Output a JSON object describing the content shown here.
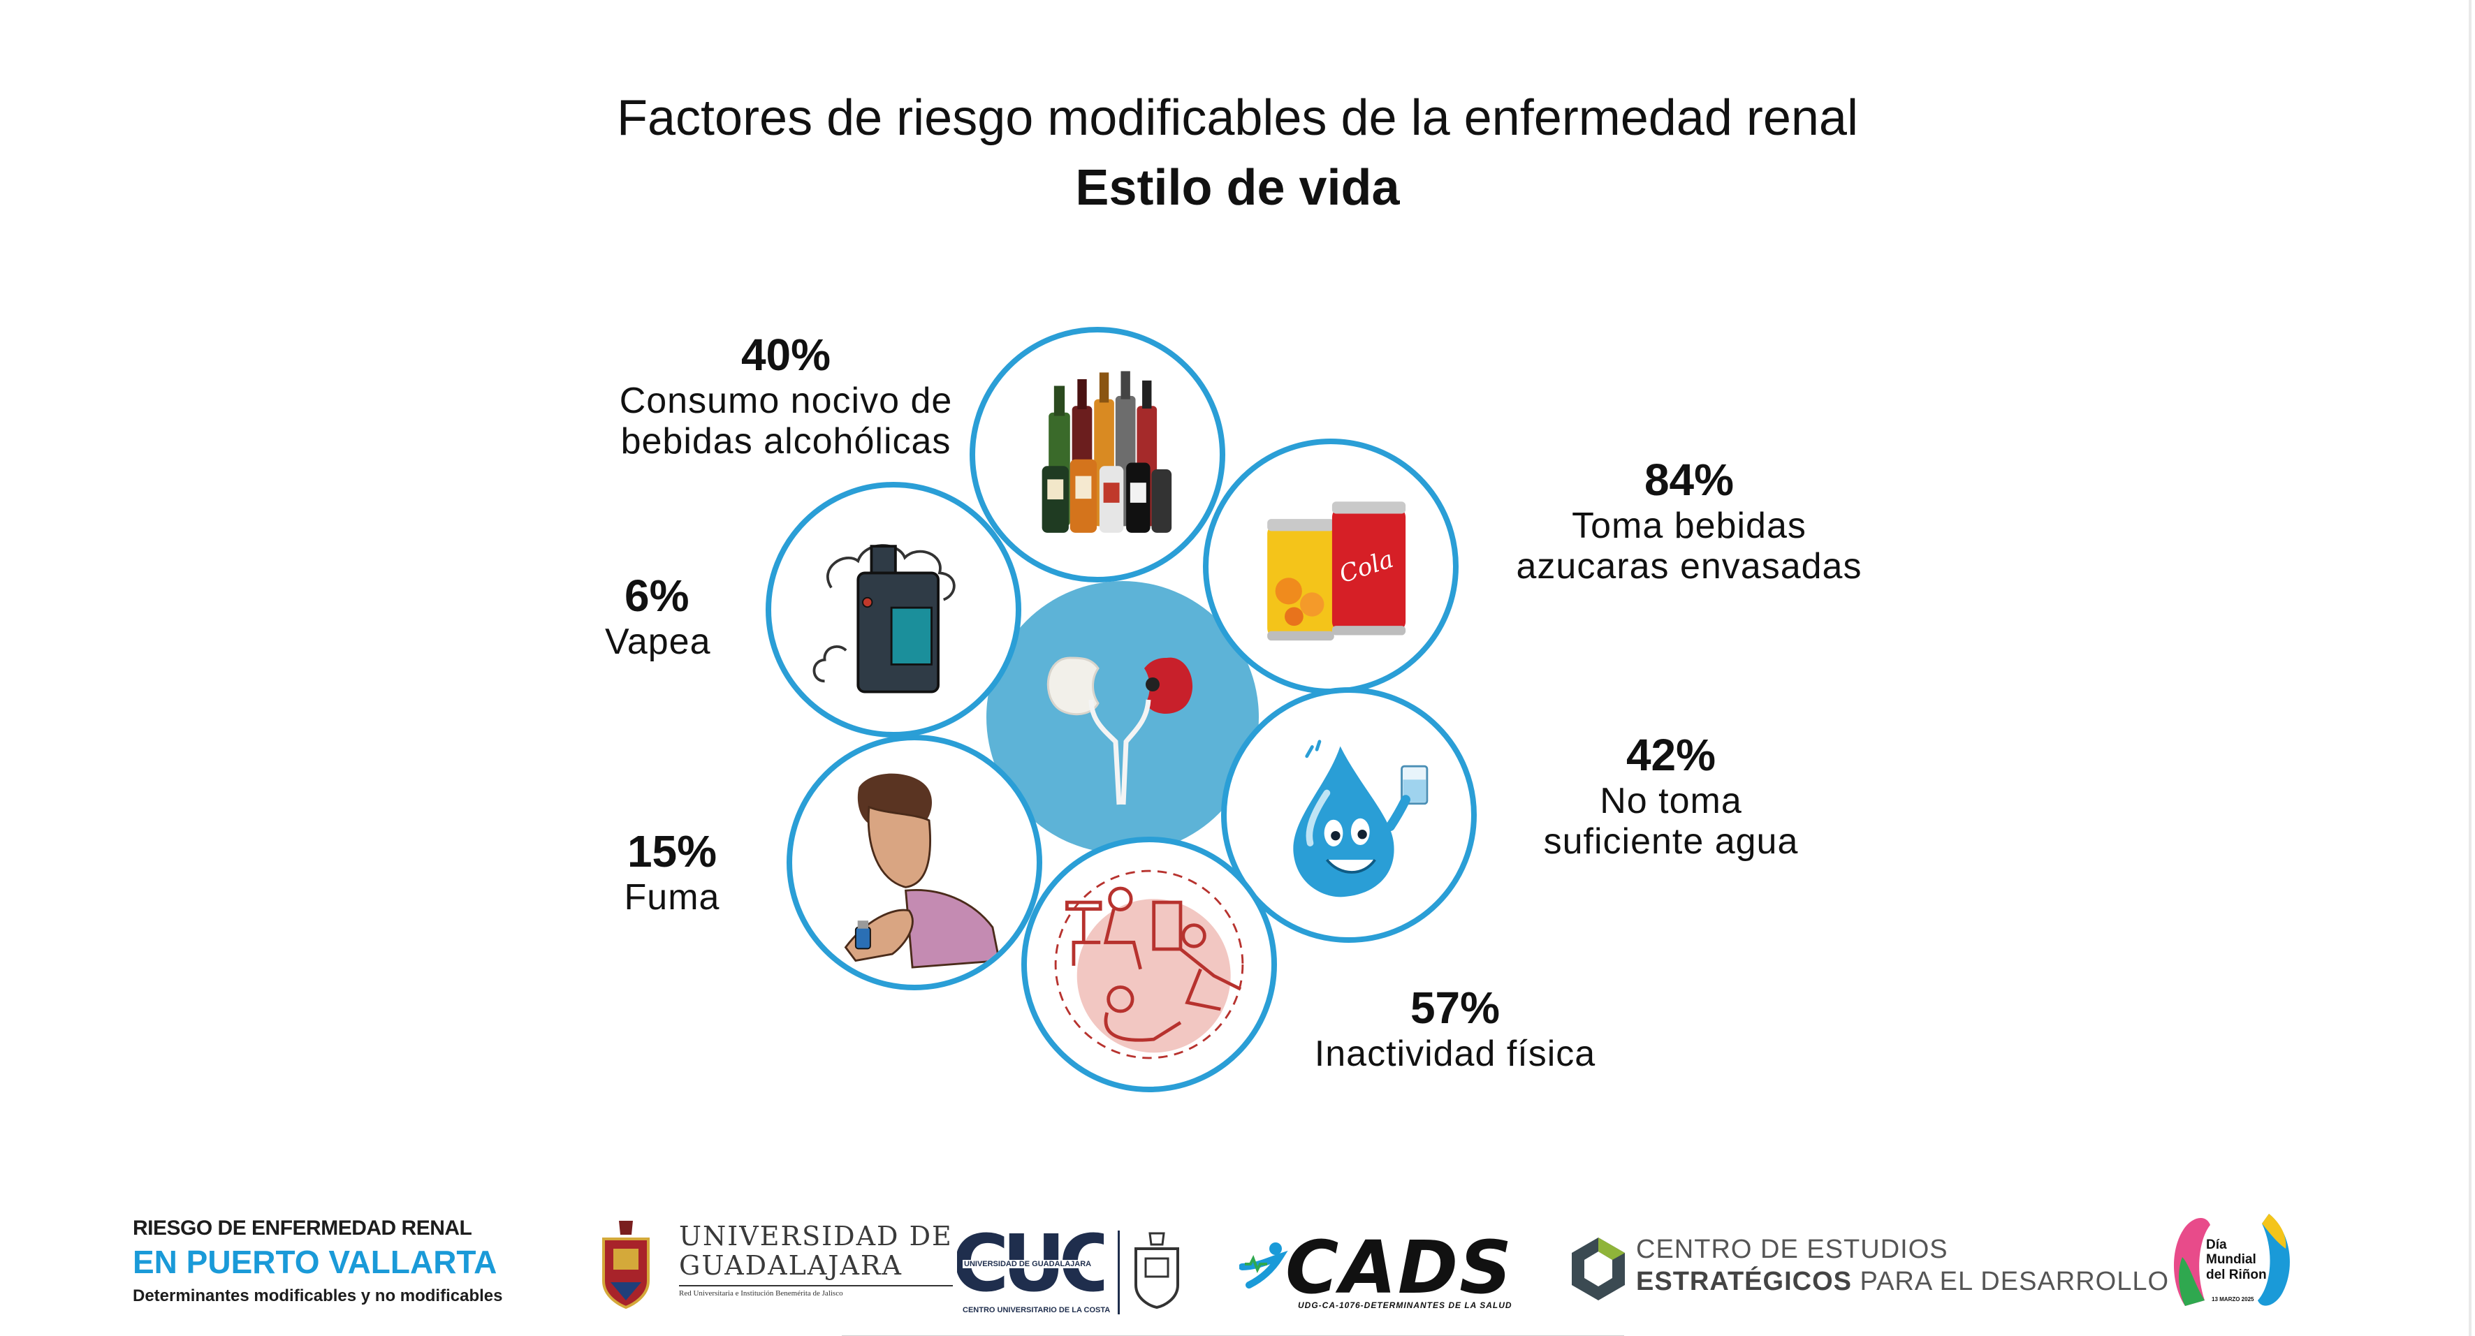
{
  "title": "Factores de riesgo modificables de la enfermedad renal",
  "subtitle": "Estilo de vida",
  "colors": {
    "ring": "#2a9ed6",
    "center": "#5db3d7",
    "accent_blue": "#1a9ad8"
  },
  "center": {
    "icon": "kidneys-icon"
  },
  "factors": [
    {
      "id": "alcohol",
      "percent": "40%",
      "line1": "Consumo nocivo de",
      "line2": "bebidas alcohólicas",
      "icon": "liquor-bottles-icon",
      "value": 40
    },
    {
      "id": "sugary",
      "percent": "84%",
      "line1": "Toma bebidas",
      "line2": "azucaras envasadas",
      "icon": "soda-cans-icon",
      "value": 84
    },
    {
      "id": "vape",
      "percent": "6%",
      "line1": "Vapea",
      "line2": "",
      "icon": "vape-icon",
      "value": 6
    },
    {
      "id": "water",
      "percent": "42%",
      "line1": "No toma",
      "line2": "suficiente agua",
      "icon": "water-drop-icon",
      "value": 42
    },
    {
      "id": "smoke",
      "percent": "15%",
      "line1": "Fuma",
      "line2": "",
      "icon": "smoking-person-icon",
      "value": 15
    },
    {
      "id": "inactivity",
      "percent": "57%",
      "line1": "Inactividad física",
      "line2": "",
      "icon": "sedentary-icon",
      "value": 57
    }
  ],
  "footer": {
    "project": {
      "line1": "RIESGO DE ENFERMEDAD RENAL",
      "line2": "EN PUERTO VALLARTA",
      "line3": "Determinantes modificables y no modificables"
    },
    "udg": {
      "line1": "UNIVERSIDAD DE",
      "line2": "GUADALAJARA",
      "line3": "Red Universitaria e Institución Benemérita de Jalisco"
    },
    "cuc": {
      "logo": "CUC",
      "top": "UNIVERSIDAD DE GUADALAJARA",
      "bottom": "CENTRO UNIVERSITARIO DE LA COSTA"
    },
    "cads": {
      "word": "CADS",
      "sub": "UDG-CA-1076-DETERMINANTES DE LA SALUD"
    },
    "ceed": {
      "line1": "CENTRO DE ESTUDIOS",
      "line2_bold": "ESTRATÉGICOS",
      "line2_rest": " PARA EL DESARROLLO"
    },
    "dmr": {
      "line1": "Día",
      "line2": "Mundial",
      "line3": "del Riñon",
      "date": "13 MARZO 2025"
    }
  }
}
